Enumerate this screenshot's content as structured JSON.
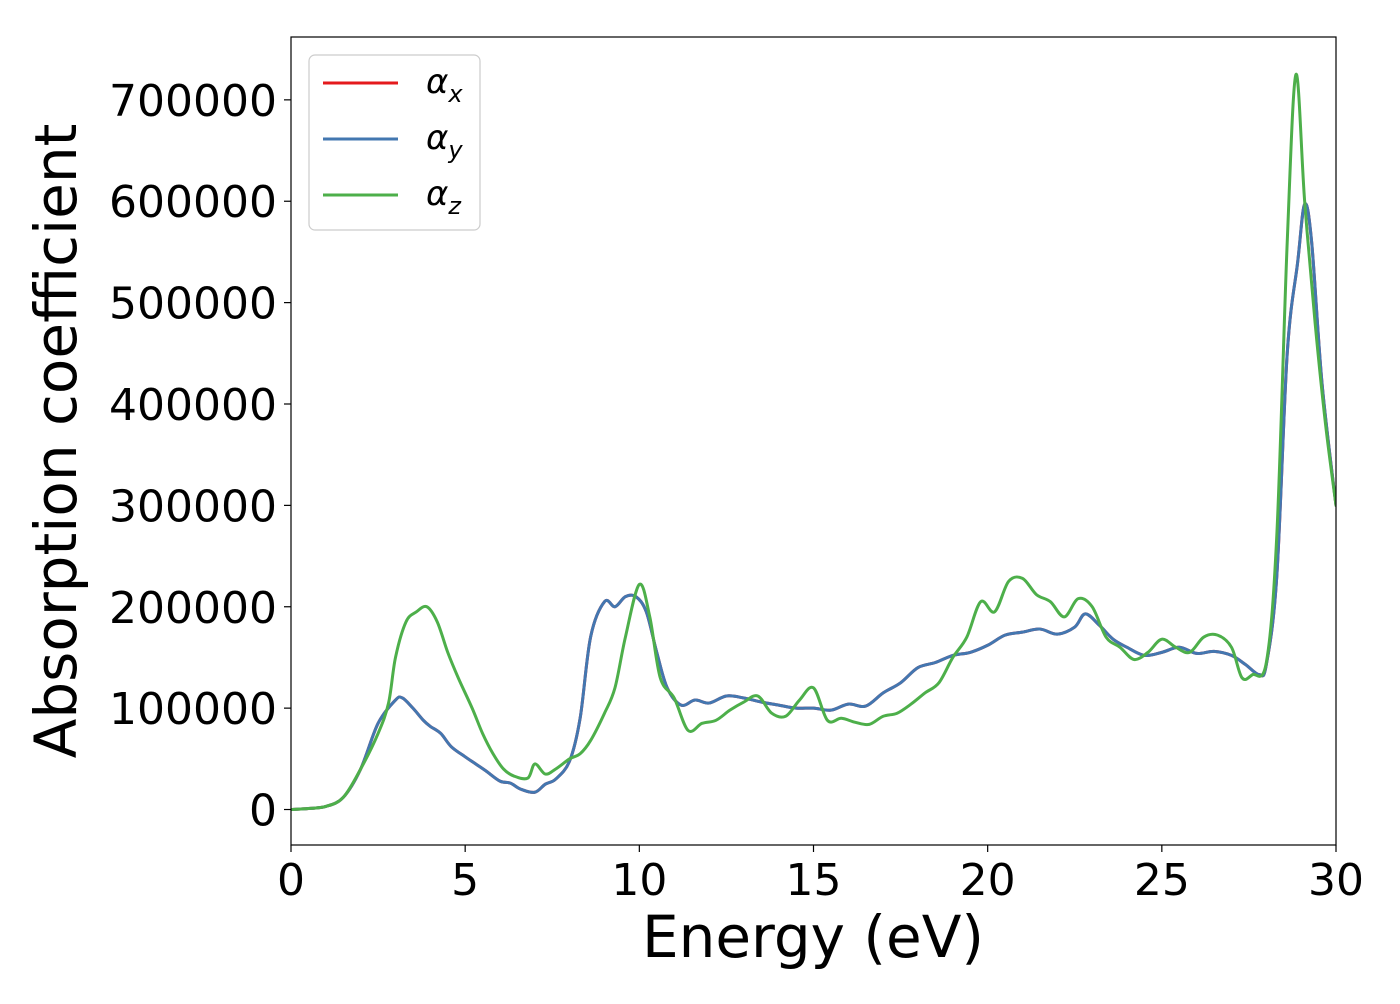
{
  "chart_data": {
    "type": "line",
    "title": "",
    "xlabel": "Energy (eV)",
    "ylabel": "Absorption coefficient",
    "xlim": [
      0,
      30
    ],
    "ylim": [
      -35000,
      762000
    ],
    "xticks": [
      0,
      5,
      10,
      15,
      20,
      25,
      30
    ],
    "yticks": [
      0,
      100000,
      200000,
      300000,
      400000,
      500000,
      600000,
      700000
    ],
    "grid": false,
    "legend_position": "top-left",
    "series": [
      {
        "name": "α_x",
        "legend_main": "α",
        "legend_sub": "x",
        "color": "#e41a1c",
        "x": [
          0,
          0.5,
          1.0,
          1.5,
          2.0,
          2.5,
          3.0,
          3.2,
          3.5,
          3.8,
          4.0,
          4.3,
          4.6,
          5.0,
          5.3,
          5.6,
          6.0,
          6.3,
          6.6,
          7.0,
          7.3,
          7.6,
          8.0,
          8.3,
          8.6,
          9.0,
          9.3,
          9.6,
          9.9,
          10.2,
          10.5,
          10.8,
          11.2,
          11.6,
          12.0,
          12.5,
          13.0,
          13.5,
          14.0,
          14.5,
          15.0,
          15.5,
          16.0,
          16.5,
          17.0,
          17.5,
          18.0,
          18.5,
          19.0,
          19.5,
          20.0,
          20.5,
          21.0,
          21.5,
          22.0,
          22.5,
          22.8,
          23.2,
          23.6,
          24.0,
          24.5,
          25.0,
          25.5,
          26.0,
          26.5,
          27.0,
          27.4,
          27.8,
          28.0,
          28.3,
          28.6,
          28.9,
          29.1,
          29.3,
          29.6,
          30.0
        ],
        "y": [
          0,
          1000,
          3000,
          12000,
          40000,
          85000,
          108000,
          110000,
          100000,
          88000,
          82000,
          75000,
          62000,
          52000,
          45000,
          38000,
          28000,
          26000,
          20000,
          17000,
          25000,
          30000,
          48000,
          90000,
          170000,
          205000,
          200000,
          210000,
          210000,
          195000,
          155000,
          120000,
          103000,
          108000,
          105000,
          112000,
          110000,
          106000,
          103000,
          100000,
          100000,
          98000,
          104000,
          102000,
          115000,
          125000,
          140000,
          145000,
          152000,
          155000,
          162000,
          172000,
          175000,
          178000,
          173000,
          180000,
          193000,
          182000,
          168000,
          160000,
          152000,
          155000,
          160000,
          154000,
          156000,
          152000,
          143000,
          133000,
          143000,
          230000,
          450000,
          540000,
          597000,
          560000,
          420000,
          300000
        ]
      },
      {
        "name": "α_y",
        "legend_main": "α",
        "legend_sub": "y",
        "color": "#4377b0",
        "x": [
          0,
          0.5,
          1.0,
          1.5,
          2.0,
          2.5,
          3.0,
          3.2,
          3.5,
          3.8,
          4.0,
          4.3,
          4.6,
          5.0,
          5.3,
          5.6,
          6.0,
          6.3,
          6.6,
          7.0,
          7.3,
          7.6,
          8.0,
          8.3,
          8.6,
          9.0,
          9.3,
          9.6,
          9.9,
          10.2,
          10.5,
          10.8,
          11.2,
          11.6,
          12.0,
          12.5,
          13.0,
          13.5,
          14.0,
          14.5,
          15.0,
          15.5,
          16.0,
          16.5,
          17.0,
          17.5,
          18.0,
          18.5,
          19.0,
          19.5,
          20.0,
          20.5,
          21.0,
          21.5,
          22.0,
          22.5,
          22.8,
          23.2,
          23.6,
          24.0,
          24.5,
          25.0,
          25.5,
          26.0,
          26.5,
          27.0,
          27.4,
          27.8,
          28.0,
          28.3,
          28.6,
          28.9,
          29.1,
          29.3,
          29.6,
          30.0
        ],
        "y": [
          0,
          1000,
          3000,
          12000,
          40000,
          85000,
          108000,
          110000,
          100000,
          88000,
          82000,
          75000,
          62000,
          52000,
          45000,
          38000,
          28000,
          26000,
          20000,
          17000,
          25000,
          30000,
          48000,
          90000,
          170000,
          205000,
          200000,
          210000,
          210000,
          195000,
          155000,
          120000,
          103000,
          108000,
          105000,
          112000,
          110000,
          106000,
          103000,
          100000,
          100000,
          98000,
          104000,
          102000,
          115000,
          125000,
          140000,
          145000,
          152000,
          155000,
          162000,
          172000,
          175000,
          178000,
          173000,
          180000,
          193000,
          182000,
          168000,
          160000,
          152000,
          155000,
          160000,
          154000,
          156000,
          152000,
          143000,
          133000,
          143000,
          230000,
          450000,
          540000,
          597000,
          560000,
          420000,
          300000
        ]
      },
      {
        "name": "α_z",
        "legend_main": "α",
        "legend_sub": "z",
        "color": "#4daf4a",
        "x": [
          0,
          0.5,
          1.0,
          1.5,
          2.0,
          2.5,
          2.8,
          3.0,
          3.3,
          3.6,
          3.9,
          4.2,
          4.5,
          4.8,
          5.2,
          5.5,
          5.8,
          6.1,
          6.4,
          6.8,
          7.0,
          7.3,
          7.6,
          8.0,
          8.3,
          8.6,
          9.0,
          9.3,
          9.6,
          10.0,
          10.3,
          10.6,
          11.0,
          11.4,
          11.8,
          12.2,
          12.6,
          13.0,
          13.4,
          13.8,
          14.2,
          14.6,
          15.0,
          15.4,
          15.8,
          16.2,
          16.6,
          17.0,
          17.4,
          17.8,
          18.2,
          18.6,
          19.0,
          19.4,
          19.8,
          20.2,
          20.6,
          21.0,
          21.4,
          21.8,
          22.2,
          22.6,
          23.0,
          23.4,
          23.8,
          24.2,
          24.6,
          25.0,
          25.4,
          25.8,
          26.2,
          26.6,
          27.0,
          27.3,
          27.6,
          28.0,
          28.3,
          28.6,
          28.85,
          29.1,
          29.4,
          29.7,
          30.0
        ],
        "y": [
          0,
          1000,
          3000,
          12000,
          40000,
          75000,
          105000,
          150000,
          185000,
          195000,
          200000,
          185000,
          155000,
          130000,
          100000,
          75000,
          55000,
          40000,
          33000,
          31000,
          45000,
          35000,
          40000,
          50000,
          55000,
          68000,
          95000,
          120000,
          170000,
          222000,
          190000,
          130000,
          110000,
          78000,
          85000,
          88000,
          98000,
          106000,
          112000,
          95000,
          92000,
          108000,
          120000,
          88000,
          90000,
          86000,
          84000,
          92000,
          95000,
          104000,
          115000,
          125000,
          150000,
          170000,
          205000,
          195000,
          225000,
          228000,
          212000,
          205000,
          190000,
          208000,
          200000,
          170000,
          160000,
          148000,
          155000,
          168000,
          160000,
          155000,
          170000,
          172000,
          160000,
          130000,
          133000,
          145000,
          270000,
          560000,
          725000,
          600000,
          480000,
          380000,
          300000
        ]
      }
    ]
  }
}
